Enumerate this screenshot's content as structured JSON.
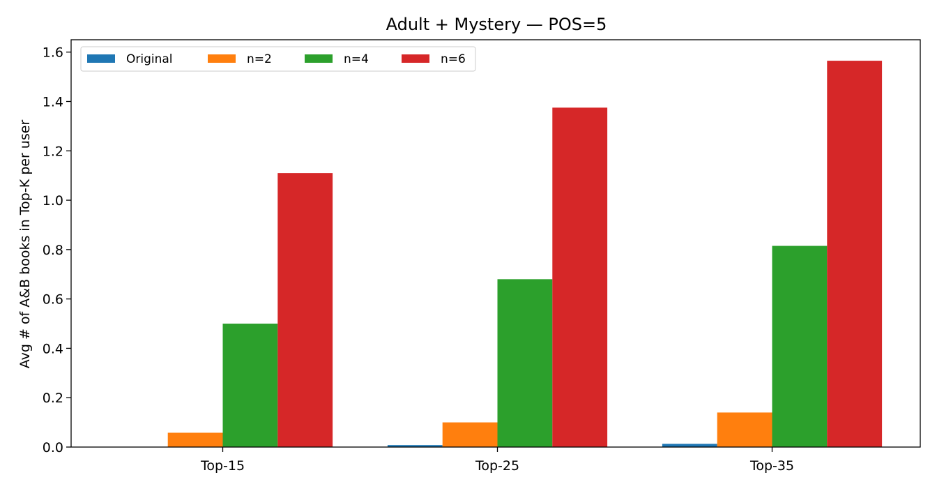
{
  "chart_data": {
    "type": "bar",
    "title": "Adult + Mystery — POS=5",
    "xlabel": "",
    "ylabel": "Avg # of A&B books in Top-K per user",
    "categories": [
      "Top-15",
      "Top-25",
      "Top-35"
    ],
    "series": [
      {
        "name": "Original",
        "color": "#1f77b4",
        "values": [
          0.0,
          0.008,
          0.013
        ]
      },
      {
        "name": "n=2",
        "color": "#ff7f0e",
        "values": [
          0.058,
          0.1,
          0.14
        ]
      },
      {
        "name": "n=4",
        "color": "#2ca02c",
        "values": [
          0.5,
          0.68,
          0.815
        ]
      },
      {
        "name": "n=6",
        "color": "#d62728",
        "values": [
          1.11,
          1.375,
          1.565
        ]
      }
    ],
    "ylim": [
      0,
      1.65
    ],
    "yticks": [
      "0.0",
      "0.2",
      "0.4",
      "0.6",
      "0.8",
      "1.0",
      "1.2",
      "1.4",
      "1.6"
    ],
    "grid": false,
    "legend_position": "top-left"
  }
}
